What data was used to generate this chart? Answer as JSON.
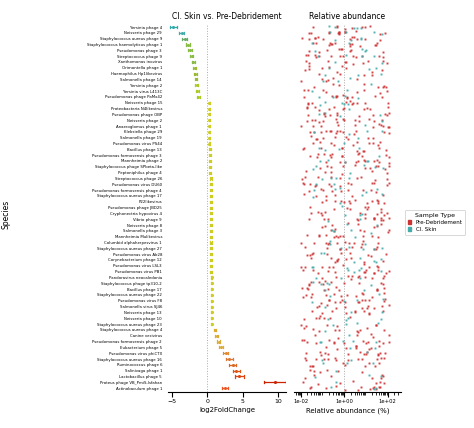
{
  "title_left": "Cl. Skin vs. Pre-Debridement",
  "title_right": "Relative abundance",
  "xlabel_left": "log2FoldChange",
  "xlabel_right": "Relative abundance (%)",
  "ylabel": "Species",
  "species": [
    "Yersinia phage 4",
    "Neisseria phage 29",
    "Staphylococcus aureus phage 9",
    "Staphylococcus haemolyticus phage 1",
    "Pseudomonas phage 3",
    "Streptococcus phage 9",
    "Xanthomonas inovirus",
    "Orimontella phage 1",
    "Haemophilus Hp1likevirus",
    "Salmonella phage 14",
    "Yersinia phage 2",
    "Yersinia virus L413C",
    "Pseudomonas phage PaMx42",
    "Neisseria phage 15",
    "Proteobacteria N4likevirus",
    "Pseudomonas phage OBP",
    "Neisseria phage 2",
    "Anaeroglomus phage 1",
    "Klebsiella phage 29",
    "Salmonella phage 19",
    "Pseudomonas virus PS44",
    "Bacillus phage 13",
    "Pseudomonas formosensis phage 3",
    "Mannheimia phage 2",
    "Staphylococcus phage SPbeta-like",
    "Peptoniphilus phage 4",
    "Streptococcus phage 26",
    "Pseudomonas virus DU60",
    "Pseudomonas formosensis phage 4",
    "Staphylococcus aureus phage 17",
    "P22likevirus",
    "Pseudomonas phage JBD25",
    "Cryphonectria hypovirus 4",
    "Vibrio phage 9",
    "Neisseria phage 8",
    "Salmonella phage 3",
    "Mannheimia Mulikevirus",
    "Columbid alphaherpesvirus 1",
    "Staphylococcus aureus phage 27",
    "Pseudomonas virus Ab28",
    "Corynebacterium phage 12",
    "Pseudomonas virus LSL3",
    "Pseudomonas virus PB1",
    "Pandoravirus neocaledonia",
    "Staphylococcus phage tp310-2",
    "Bacillus phage 17",
    "Staphylococcus aureus phage 22",
    "Pseudomonas virus F8",
    "Salmonella virus SJ46",
    "Neisseria phage 13",
    "Neisseria phage 10",
    "Staphylococcus aureus phage 23",
    "Staphylococcus aureus phage 4",
    "Canine vesivirus",
    "Pseudomonas formosensis phage 2",
    "Eubacterium phage 5",
    "Pseudomonas virus phiCTX",
    "Staphylococcus aureus phage 16",
    "Ruminococcus phage 6",
    "Salinivaga phage 1",
    "Lactobacillus phage 5",
    "Proteus phage VB_PmiS-Isfahan",
    "Actinobaculum phage 1"
  ],
  "log2fc_vals": [
    -4.8,
    -3.6,
    -3.2,
    -2.7,
    -2.4,
    -2.2,
    -2.0,
    -1.8,
    -1.7,
    -1.6,
    -1.5,
    -1.4,
    -1.3,
    0.3,
    0.3,
    0.3,
    0.3,
    0.3,
    0.3,
    0.3,
    0.3,
    0.4,
    0.4,
    0.4,
    0.4,
    0.4,
    0.5,
    0.5,
    0.5,
    0.5,
    0.5,
    0.5,
    0.5,
    0.5,
    0.5,
    0.5,
    0.5,
    0.5,
    0.5,
    0.5,
    0.5,
    0.5,
    0.5,
    0.6,
    0.6,
    0.6,
    0.6,
    0.6,
    0.6,
    0.6,
    0.6,
    0.6,
    1.1,
    1.3,
    1.6,
    1.9,
    2.6,
    3.1,
    3.6,
    4.1,
    4.5,
    9.5,
    2.5
  ],
  "log2fc_err": [
    0.5,
    0.35,
    0.3,
    0.3,
    0.3,
    0.25,
    0.2,
    0.2,
    0.2,
    0.2,
    0.2,
    0.2,
    0.2,
    0.12,
    0.12,
    0.12,
    0.12,
    0.12,
    0.12,
    0.12,
    0.12,
    0.12,
    0.12,
    0.12,
    0.12,
    0.12,
    0.12,
    0.12,
    0.12,
    0.12,
    0.12,
    0.12,
    0.12,
    0.12,
    0.12,
    0.12,
    0.12,
    0.12,
    0.12,
    0.12,
    0.12,
    0.12,
    0.12,
    0.12,
    0.12,
    0.12,
    0.12,
    0.12,
    0.12,
    0.12,
    0.12,
    0.12,
    0.18,
    0.18,
    0.22,
    0.25,
    0.35,
    0.45,
    0.5,
    0.55,
    0.6,
    1.5,
    0.4
  ],
  "point_colors": [
    "#33aaaa",
    "#44aaaa",
    "#66aa66",
    "#88bb44",
    "#88bb44",
    "#88bb44",
    "#88bb44",
    "#99bb33",
    "#99bb33",
    "#99bb33",
    "#aacc22",
    "#aacc22",
    "#aacc22",
    "#cccc22",
    "#cccc22",
    "#cccc22",
    "#cccc22",
    "#cccc22",
    "#cccc22",
    "#cccc22",
    "#cccc22",
    "#cccc22",
    "#cccc22",
    "#cccc22",
    "#cccc22",
    "#cccc22",
    "#cccc22",
    "#cccc22",
    "#cccc22",
    "#cccc22",
    "#cccc22",
    "#cccc22",
    "#cccc22",
    "#cccc22",
    "#cccc22",
    "#cccc22",
    "#cccc22",
    "#cccc22",
    "#cccc22",
    "#cccc22",
    "#cccc22",
    "#cccc22",
    "#cccc22",
    "#cccc22",
    "#cccc22",
    "#cccc22",
    "#cccc22",
    "#cccc22",
    "#cccc22",
    "#cccc22",
    "#cccc22",
    "#cccc22",
    "#ddaa33",
    "#ddaa33",
    "#ddaa33",
    "#ddaa33",
    "#dd8833",
    "#dd7733",
    "#dd6622",
    "#dd5511",
    "#dd4411",
    "#cc2200",
    "#ee5522"
  ],
  "pre_color": "#cc3333",
  "skin_color": "#44aaaa",
  "legend_title": "Sample Type",
  "vline_color": "#aaaaaa",
  "fig_background": "#ffffff"
}
